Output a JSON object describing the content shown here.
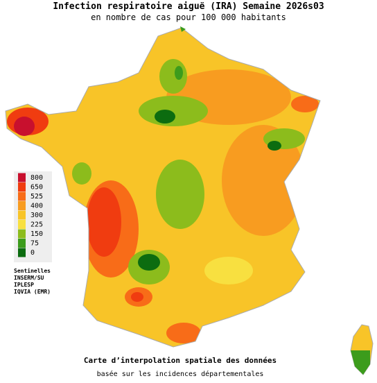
{
  "header": {
    "title": "Infection respiratoire aiguë (IRA) Semaine 2026s03",
    "subtitle": "en nombre de cas pour 100 000 habitants"
  },
  "legend": {
    "items": [
      {
        "label": "800",
        "color": "#c8102e"
      },
      {
        "label": "650",
        "color": "#f03c10"
      },
      {
        "label": "525",
        "color": "#f86c18"
      },
      {
        "label": "400",
        "color": "#f89c20"
      },
      {
        "label": "300",
        "color": "#f8c428"
      },
      {
        "label": "225",
        "color": "#f8e040"
      },
      {
        "label": "150",
        "color": "#8cbc1c"
      },
      {
        "label": "75",
        "color": "#3c9c1c"
      },
      {
        "label": "0",
        "color": "#0c6c10"
      }
    ]
  },
  "sources": [
    "Sentinelles",
    "INSERM/SU",
    "IPLESP",
    "IQVIA (EMR)"
  ],
  "footer": {
    "line1": "Carte d’interpolation spatiale des données",
    "line2": "basée sur les incidences départementales"
  }
}
